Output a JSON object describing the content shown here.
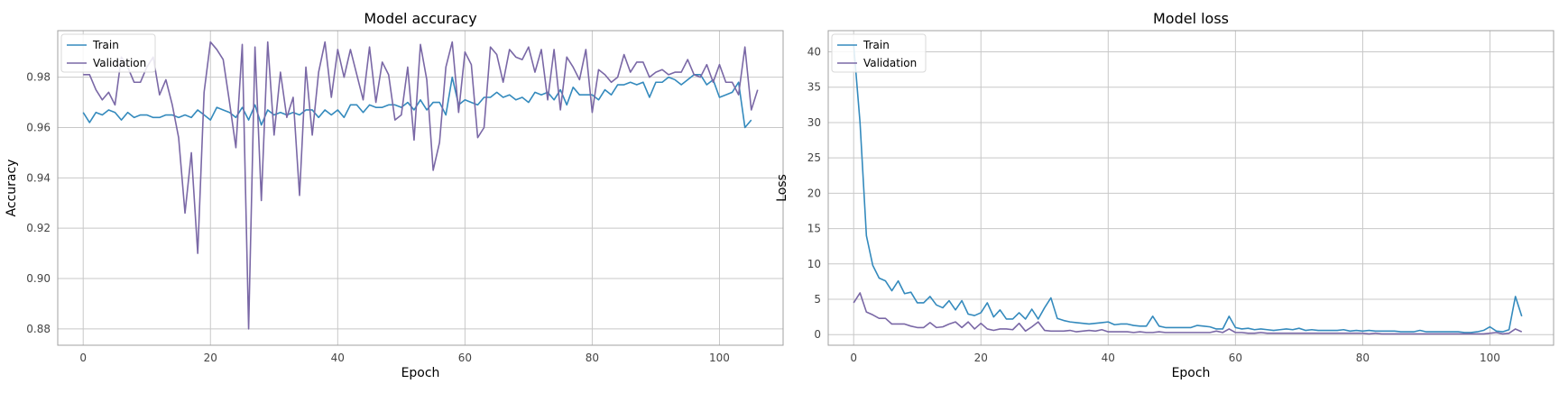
{
  "chart_data": [
    {
      "type": "line",
      "title": "Model accuracy",
      "xlabel": "Epoch",
      "ylabel": "Accuracy",
      "xlim": [
        -4,
        110
      ],
      "ylim": [
        0.8735,
        0.9985
      ],
      "xticks": [
        0,
        20,
        40,
        60,
        80,
        100
      ],
      "yticks": [
        0.88,
        0.9,
        0.92,
        0.94,
        0.96,
        0.98
      ],
      "ytick_labels": [
        "0.88",
        "0.90",
        "0.92",
        "0.94",
        "0.96",
        "0.98"
      ],
      "grid": true,
      "legend_position": "top-left",
      "series": [
        {
          "name": "Train",
          "color": "#348abd",
          "values": [
            0.966,
            0.962,
            0.966,
            0.965,
            0.967,
            0.966,
            0.963,
            0.966,
            0.964,
            0.965,
            0.965,
            0.964,
            0.964,
            0.965,
            0.965,
            0.964,
            0.965,
            0.964,
            0.967,
            0.965,
            0.963,
            0.968,
            0.967,
            0.966,
            0.964,
            0.968,
            0.963,
            0.969,
            0.961,
            0.967,
            0.965,
            0.966,
            0.965,
            0.966,
            0.965,
            0.967,
            0.967,
            0.964,
            0.967,
            0.965,
            0.967,
            0.964,
            0.969,
            0.969,
            0.966,
            0.969,
            0.968,
            0.968,
            0.969,
            0.969,
            0.968,
            0.97,
            0.967,
            0.971,
            0.967,
            0.97,
            0.97,
            0.965,
            0.98,
            0.969,
            0.971,
            0.97,
            0.969,
            0.972,
            0.972,
            0.974,
            0.972,
            0.973,
            0.971,
            0.972,
            0.97,
            0.974,
            0.973,
            0.974,
            0.971,
            0.975,
            0.969,
            0.976,
            0.973,
            0.973,
            0.973,
            0.971,
            0.975,
            0.973,
            0.977,
            0.977,
            0.978,
            0.977,
            0.978,
            0.972,
            0.978,
            0.978,
            0.98,
            0.979,
            0.977,
            0.979,
            0.981,
            0.981,
            0.977,
            0.979,
            0.972,
            0.973,
            0.974,
            0.978,
            0.96,
            0.963
          ]
        },
        {
          "name": "Validation",
          "color": "#7a68a6",
          "values": [
            0.981,
            0.981,
            0.975,
            0.971,
            0.974,
            0.969,
            0.988,
            0.984,
            0.978,
            0.978,
            0.984,
            0.988,
            0.973,
            0.979,
            0.969,
            0.956,
            0.926,
            0.95,
            0.91,
            0.974,
            0.994,
            0.991,
            0.987,
            0.97,
            0.952,
            0.993,
            0.88,
            0.992,
            0.931,
            0.994,
            0.957,
            0.982,
            0.964,
            0.972,
            0.933,
            0.984,
            0.957,
            0.982,
            0.994,
            0.972,
            0.991,
            0.98,
            0.991,
            0.981,
            0.971,
            0.992,
            0.97,
            0.986,
            0.981,
            0.963,
            0.965,
            0.984,
            0.955,
            0.993,
            0.979,
            0.943,
            0.954,
            0.984,
            0.994,
            0.966,
            0.99,
            0.985,
            0.956,
            0.96,
            0.992,
            0.989,
            0.978,
            0.991,
            0.988,
            0.987,
            0.992,
            0.982,
            0.991,
            0.971,
            0.991,
            0.967,
            0.988,
            0.984,
            0.979,
            0.991,
            0.966,
            0.983,
            0.981,
            0.978,
            0.98,
            0.989,
            0.982,
            0.986,
            0.986,
            0.98,
            0.982,
            0.983,
            0.981,
            0.982,
            0.982,
            0.987,
            0.981,
            0.98,
            0.985,
            0.978,
            0.985,
            0.978,
            0.978,
            0.973,
            0.992,
            0.967,
            0.975
          ]
        }
      ]
    },
    {
      "type": "line",
      "title": "Model loss",
      "xlabel": "Epoch",
      "ylabel": "Loss",
      "xlim": [
        -4,
        110
      ],
      "ylim": [
        -1.5,
        43
      ],
      "xticks": [
        0,
        20,
        40,
        60,
        80,
        100
      ],
      "yticks": [
        0,
        5,
        10,
        15,
        20,
        25,
        30,
        35,
        40
      ],
      "ytick_labels": [
        "0",
        "5",
        "10",
        "15",
        "20",
        "25",
        "30",
        "35",
        "40"
      ],
      "grid": true,
      "legend_position": "top-left",
      "series": [
        {
          "name": "Train",
          "color": "#348abd",
          "values": [
            41,
            30,
            14,
            9.8,
            8,
            7.6,
            6.2,
            7.6,
            5.8,
            6,
            4.5,
            4.5,
            5.4,
            4.2,
            3.8,
            4.8,
            3.5,
            4.8,
            2.9,
            2.7,
            3.1,
            4.5,
            2.5,
            3.5,
            2.2,
            2.2,
            3.1,
            2.2,
            3.6,
            2.2,
            3.8,
            5.2,
            2.3,
            2,
            1.8,
            1.7,
            1.6,
            1.5,
            1.6,
            1.7,
            1.8,
            1.4,
            1.5,
            1.5,
            1.3,
            1.2,
            1.2,
            2.6,
            1.2,
            1,
            1,
            1,
            1,
            1,
            1.3,
            1.2,
            1.1,
            0.8,
            0.8,
            2.6,
            1,
            0.8,
            0.9,
            0.7,
            0.8,
            0.7,
            0.6,
            0.7,
            0.8,
            0.7,
            0.9,
            0.6,
            0.7,
            0.6,
            0.6,
            0.6,
            0.6,
            0.7,
            0.5,
            0.6,
            0.5,
            0.6,
            0.5,
            0.5,
            0.5,
            0.5,
            0.4,
            0.4,
            0.4,
            0.6,
            0.4,
            0.4,
            0.4,
            0.4,
            0.4,
            0.4,
            0.3,
            0.3,
            0.4,
            0.6,
            1.1,
            0.5,
            0.4,
            0.7,
            5.4,
            2.6
          ]
        },
        {
          "name": "Validation",
          "color": "#7a68a6",
          "values": [
            4.5,
            5.9,
            3.2,
            2.8,
            2.3,
            2.3,
            1.5,
            1.5,
            1.5,
            1.2,
            1,
            1,
            1.7,
            1,
            1.1,
            1.5,
            1.8,
            1,
            1.8,
            0.8,
            1.6,
            0.8,
            0.6,
            0.8,
            0.8,
            0.7,
            1.6,
            0.5,
            1.1,
            1.8,
            0.6,
            0.5,
            0.5,
            0.5,
            0.6,
            0.4,
            0.5,
            0.6,
            0.5,
            0.7,
            0.4,
            0.4,
            0.4,
            0.4,
            0.3,
            0.4,
            0.3,
            0.3,
            0.4,
            0.3,
            0.3,
            0.3,
            0.3,
            0.3,
            0.3,
            0.3,
            0.3,
            0.5,
            0.3,
            0.8,
            0.3,
            0.3,
            0.2,
            0.2,
            0.3,
            0.2,
            0.2,
            0.2,
            0.2,
            0.2,
            0.2,
            0.2,
            0.2,
            0.2,
            0.2,
            0.2,
            0.2,
            0.2,
            0.2,
            0.2,
            0.2,
            0.1,
            0.2,
            0.1,
            0.1,
            0.1,
            0.1,
            0.1,
            0.1,
            0.1,
            0.1,
            0.1,
            0.1,
            0.1,
            0.1,
            0.1,
            0.1,
            0.1,
            0.1,
            0.1,
            0.2,
            0.3,
            0.1,
            0.2,
            0.8,
            0.4
          ]
        }
      ]
    }
  ]
}
